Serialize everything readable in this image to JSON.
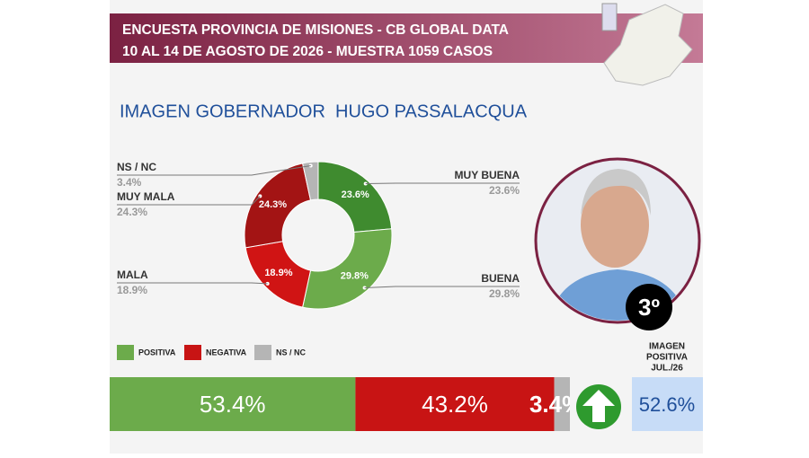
{
  "header": {
    "line1": "ENCUESTA PROVINCIA DE MISIONES - CB GLOBAL DATA",
    "line2": "10 AL 14 DE AGOSTO DE 2026 - MUESTRA 1059 CASOS"
  },
  "chart_data": [
    {
      "type": "donut",
      "title": "IMAGEN GOBERNADOR  HUGO PASSALACQUA",
      "categories": [
        "MUY BUENA",
        "BUENA",
        "MALA",
        "MUY MALA",
        "NS / NC"
      ],
      "values": [
        23.6,
        29.8,
        18.9,
        24.3,
        3.4
      ],
      "value_labels": [
        "23.6%",
        "29.8%",
        "18.9%",
        "24.3%",
        "3.4%"
      ],
      "colors": [
        "#3f8b2f",
        "#6cab4b",
        "#d01414",
        "#a31414",
        "#b5b5b5"
      ]
    },
    {
      "type": "stacked_bar",
      "categories": [
        "POSITIVA",
        "NEGATIVA",
        "NS / NC"
      ],
      "values": [
        53.4,
        43.2,
        3.4
      ],
      "value_labels": [
        "53.4%",
        "43.2%",
        "3.4%"
      ],
      "colors": [
        "#6cab4b",
        "#c81414",
        "#b5b5b5"
      ]
    }
  ],
  "badge": "3º",
  "comparison": {
    "label": [
      "IMAGEN",
      "POSITIVA",
      "JUL./26"
    ],
    "value": 52.6,
    "value_label": "52.6%"
  }
}
